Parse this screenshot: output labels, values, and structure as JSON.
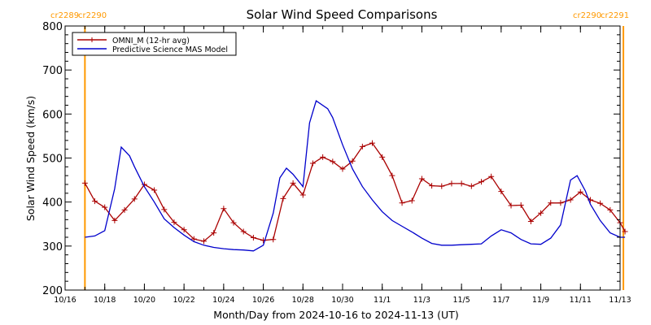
{
  "chart_data": {
    "type": "line",
    "title": "Solar Wind Speed Comparisons",
    "xlabel": "Month/Day from 2024-10-16 to 2024-11-13 (UT)",
    "ylabel": "Solar Wind Speed (km/s)",
    "xlim": [
      "2024-10-16",
      "2024-11-13"
    ],
    "ylim": [
      200,
      800
    ],
    "x_ticks": [
      {
        "date": "2024-10-16",
        "label": "10/16"
      },
      {
        "date": "2024-10-18",
        "label": "10/18"
      },
      {
        "date": "2024-10-20",
        "label": "10/20"
      },
      {
        "date": "2024-10-22",
        "label": "10/22"
      },
      {
        "date": "2024-10-24",
        "label": "10/24"
      },
      {
        "date": "2024-10-26",
        "label": "10/26"
      },
      {
        "date": "2024-10-28",
        "label": "10/28"
      },
      {
        "date": "2024-10-30",
        "label": "10/30"
      },
      {
        "date": "2024-11-01",
        "label": "11/1"
      },
      {
        "date": "2024-11-03",
        "label": "11/3"
      },
      {
        "date": "2024-11-05",
        "label": "11/5"
      },
      {
        "date": "2024-11-07",
        "label": "11/7"
      },
      {
        "date": "2024-11-09",
        "label": "11/9"
      },
      {
        "date": "2024-11-11",
        "label": "11/11"
      },
      {
        "date": "2024-11-13",
        "label": "11/13"
      }
    ],
    "y_ticks": [
      200,
      300,
      400,
      500,
      600,
      700,
      800
    ],
    "legend_position": "top-left",
    "series": [
      {
        "name": "OMNI_M (12-hr avg)",
        "color": "#aa0000",
        "markers": "plus",
        "points": [
          [
            "2024-10-17T00:00",
            443
          ],
          [
            "2024-10-17T12:00",
            402
          ],
          [
            "2024-10-18T00:00",
            388
          ],
          [
            "2024-10-18T12:00",
            358
          ],
          [
            "2024-10-19T00:00",
            382
          ],
          [
            "2024-10-19T12:00",
            407
          ],
          [
            "2024-10-20T00:00",
            440
          ],
          [
            "2024-10-20T12:00",
            427
          ],
          [
            "2024-10-21T00:00",
            383
          ],
          [
            "2024-10-21T12:00",
            354
          ],
          [
            "2024-10-22T00:00",
            337
          ],
          [
            "2024-10-22T12:00",
            316
          ],
          [
            "2024-10-23T00:00",
            311
          ],
          [
            "2024-10-23T12:00",
            330
          ],
          [
            "2024-10-24T00:00",
            385
          ],
          [
            "2024-10-24T12:00",
            353
          ],
          [
            "2024-10-25T00:00",
            333
          ],
          [
            "2024-10-25T12:00",
            319
          ],
          [
            "2024-10-26T00:00",
            313
          ],
          [
            "2024-10-26T12:00",
            315
          ],
          [
            "2024-10-27T00:00",
            408
          ],
          [
            "2024-10-27T12:00",
            443
          ],
          [
            "2024-10-28T00:00",
            416
          ],
          [
            "2024-10-28T12:00",
            488
          ],
          [
            "2024-10-29T00:00",
            502
          ],
          [
            "2024-10-29T12:00",
            492
          ],
          [
            "2024-10-30T00:00",
            475
          ],
          [
            "2024-10-30T12:00",
            493
          ],
          [
            "2024-10-31T00:00",
            526
          ],
          [
            "2024-10-31T12:00",
            534
          ],
          [
            "2024-11-01T00:00",
            502
          ],
          [
            "2024-11-01T12:00",
            460
          ],
          [
            "2024-11-02T00:00",
            398
          ],
          [
            "2024-11-02T12:00",
            403
          ],
          [
            "2024-11-03T00:00",
            453
          ],
          [
            "2024-11-03T12:00",
            437
          ],
          [
            "2024-11-04T00:00",
            436
          ],
          [
            "2024-11-04T12:00",
            442
          ],
          [
            "2024-11-05T00:00",
            442
          ],
          [
            "2024-11-05T12:00",
            436
          ],
          [
            "2024-11-06T00:00",
            446
          ],
          [
            "2024-11-06T12:00",
            458
          ],
          [
            "2024-11-07T00:00",
            424
          ],
          [
            "2024-11-07T12:00",
            392
          ],
          [
            "2024-11-08T00:00",
            393
          ],
          [
            "2024-11-08T12:00",
            356
          ],
          [
            "2024-11-09T00:00",
            375
          ],
          [
            "2024-11-09T12:00",
            398
          ],
          [
            "2024-11-10T00:00",
            398
          ],
          [
            "2024-11-10T12:00",
            405
          ],
          [
            "2024-11-11T00:00",
            423
          ],
          [
            "2024-11-11T12:00",
            405
          ],
          [
            "2024-11-12T00:00",
            397
          ],
          [
            "2024-11-12T12:00",
            382
          ],
          [
            "2024-11-13T00:00",
            353
          ],
          [
            "2024-11-13T06:00",
            333
          ]
        ]
      },
      {
        "name": "Predictive Science MAS Model",
        "color": "#0000cc",
        "markers": "none",
        "points": [
          [
            "2024-10-17T00:00",
            320
          ],
          [
            "2024-10-17T12:00",
            323
          ],
          [
            "2024-10-18T00:00",
            335
          ],
          [
            "2024-10-18T12:00",
            430
          ],
          [
            "2024-10-18T20:00",
            525
          ],
          [
            "2024-10-19T06:00",
            505
          ],
          [
            "2024-10-19T12:00",
            480
          ],
          [
            "2024-10-20T00:00",
            435
          ],
          [
            "2024-10-20T12:00",
            400
          ],
          [
            "2024-10-21T00:00",
            362
          ],
          [
            "2024-10-21T12:00",
            342
          ],
          [
            "2024-10-22T00:00",
            325
          ],
          [
            "2024-10-22T12:00",
            310
          ],
          [
            "2024-10-23T00:00",
            302
          ],
          [
            "2024-10-23T12:00",
            297
          ],
          [
            "2024-10-24T00:00",
            294
          ],
          [
            "2024-10-24T12:00",
            292
          ],
          [
            "2024-10-25T00:00",
            291
          ],
          [
            "2024-10-25T12:00",
            289
          ],
          [
            "2024-10-26T00:00",
            302
          ],
          [
            "2024-10-26T12:00",
            375
          ],
          [
            "2024-10-26T20:00",
            455
          ],
          [
            "2024-10-27T04:00",
            477
          ],
          [
            "2024-10-27T12:00",
            463
          ],
          [
            "2024-10-28T00:00",
            435
          ],
          [
            "2024-10-28T08:00",
            580
          ],
          [
            "2024-10-28T16:00",
            630
          ],
          [
            "2024-10-29T06:00",
            612
          ],
          [
            "2024-10-29T12:00",
            592
          ],
          [
            "2024-10-30T00:00",
            530
          ],
          [
            "2024-10-30T12:00",
            475
          ],
          [
            "2024-10-31T00:00",
            435
          ],
          [
            "2024-10-31T12:00",
            405
          ],
          [
            "2024-11-01T00:00",
            378
          ],
          [
            "2024-11-01T12:00",
            358
          ],
          [
            "2024-11-02T00:00",
            345
          ],
          [
            "2024-11-02T12:00",
            332
          ],
          [
            "2024-11-03T00:00",
            318
          ],
          [
            "2024-11-03T12:00",
            306
          ],
          [
            "2024-11-04T00:00",
            302
          ],
          [
            "2024-11-04T12:00",
            302
          ],
          [
            "2024-11-05T00:00",
            303
          ],
          [
            "2024-11-05T12:00",
            304
          ],
          [
            "2024-11-06T00:00",
            305
          ],
          [
            "2024-11-06T12:00",
            323
          ],
          [
            "2024-11-07T00:00",
            337
          ],
          [
            "2024-11-07T12:00",
            330
          ],
          [
            "2024-11-08T00:00",
            315
          ],
          [
            "2024-11-08T12:00",
            305
          ],
          [
            "2024-11-09T00:00",
            304
          ],
          [
            "2024-11-09T12:00",
            318
          ],
          [
            "2024-11-10T00:00",
            348
          ],
          [
            "2024-11-10T12:00",
            450
          ],
          [
            "2024-11-10T20:00",
            460
          ],
          [
            "2024-11-11T06:00",
            425
          ],
          [
            "2024-11-11T12:00",
            395
          ],
          [
            "2024-11-12T00:00",
            358
          ],
          [
            "2024-11-12T12:00",
            330
          ],
          [
            "2024-11-13T00:00",
            320
          ],
          [
            "2024-11-13T06:00",
            320
          ]
        ]
      }
    ],
    "vertical_markers": [
      {
        "date": "2024-10-17T00:00",
        "color": "#ff9900",
        "labels": [
          "cr2289",
          "cr2290"
        ],
        "label_side": "left"
      },
      {
        "date": "2024-11-13T04:00",
        "color": "#ff9900",
        "labels": [
          "cr2290",
          "cr2291"
        ],
        "label_side": "right"
      }
    ],
    "grid": false
  }
}
